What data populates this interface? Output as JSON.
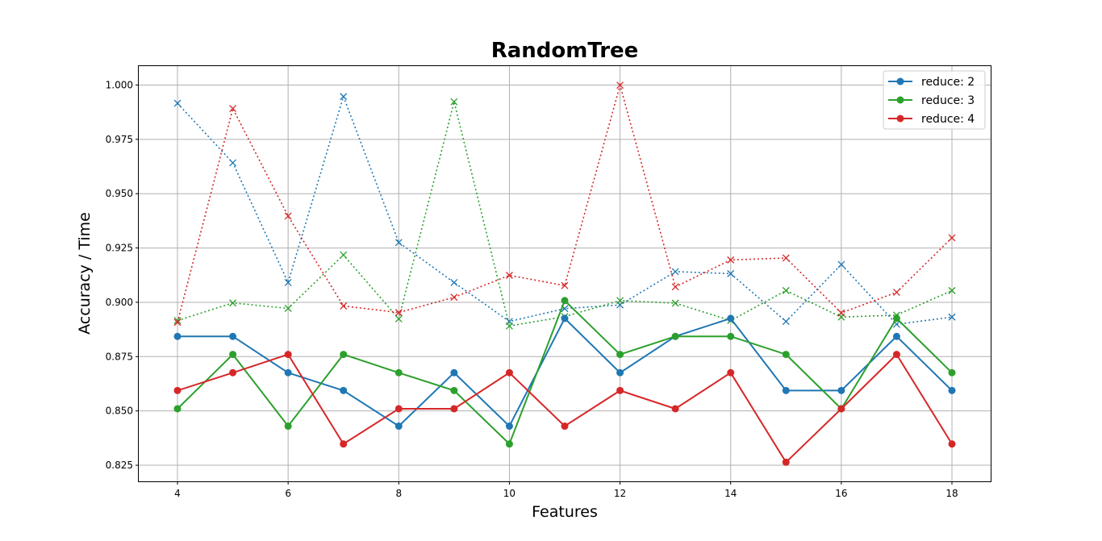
{
  "chart_data": {
    "type": "line",
    "title": "RandomTree",
    "xlabel": "Features",
    "ylabel": "Accuracy / Time",
    "xlim": [
      3.3,
      18.7
    ],
    "ylim": [
      0.8176,
      1.0087
    ],
    "xticks": [
      4,
      6,
      8,
      10,
      12,
      14,
      16,
      18
    ],
    "yticks": [
      0.825,
      0.85,
      0.875,
      0.9,
      0.925,
      0.95,
      0.975,
      1.0
    ],
    "ytick_labels": [
      "0.825",
      "0.850",
      "0.875",
      "0.900",
      "0.925",
      "0.950",
      "0.975",
      "1.000"
    ],
    "grid": true,
    "legend_position": "top-right",
    "x": [
      4,
      5,
      6,
      7,
      8,
      9,
      10,
      11,
      12,
      13,
      14,
      15,
      16,
      17,
      18
    ],
    "series": [
      {
        "name": "reduce: 2",
        "color": "#1f77b4",
        "accuracy": [
          0.8843,
          0.8843,
          0.8676,
          0.8594,
          0.843,
          0.8676,
          0.843,
          0.8926,
          0.8676,
          0.8843,
          0.8926,
          0.8594,
          0.8594,
          0.8843,
          0.8594
        ],
        "time": [
          0.9916,
          0.9642,
          0.9091,
          0.9947,
          0.9275,
          0.9091,
          0.8912,
          0.8971,
          0.8988,
          0.9141,
          0.9132,
          0.8912,
          0.9174,
          0.8899,
          0.8932
        ]
      },
      {
        "name": "reduce: 3",
        "color": "#2ca02c",
        "accuracy": [
          0.851,
          0.876,
          0.843,
          0.876,
          0.8676,
          0.8594,
          0.8348,
          0.9008,
          0.876,
          0.8843,
          0.8843,
          0.876,
          0.851,
          0.8926,
          0.8676
        ],
        "time": [
          0.8916,
          0.8997,
          0.8972,
          0.9218,
          0.8924,
          0.9923,
          0.8891,
          0.8934,
          0.9008,
          0.8996,
          0.8916,
          0.9054,
          0.8932,
          0.8941,
          0.9054
        ]
      },
      {
        "name": "reduce: 4",
        "color": "#d62728",
        "accuracy": [
          0.8594,
          0.8676,
          0.876,
          0.8348,
          0.851,
          0.851,
          0.8676,
          0.843,
          0.8594,
          0.851,
          0.8676,
          0.8264,
          0.851,
          0.876,
          0.8348
        ],
        "time": [
          0.8908,
          0.9892,
          0.9397,
          0.8983,
          0.8953,
          0.9023,
          0.9124,
          0.9077,
          0.9999,
          0.9071,
          0.9195,
          0.9204,
          0.8951,
          0.9046,
          0.9297
        ]
      }
    ]
  }
}
